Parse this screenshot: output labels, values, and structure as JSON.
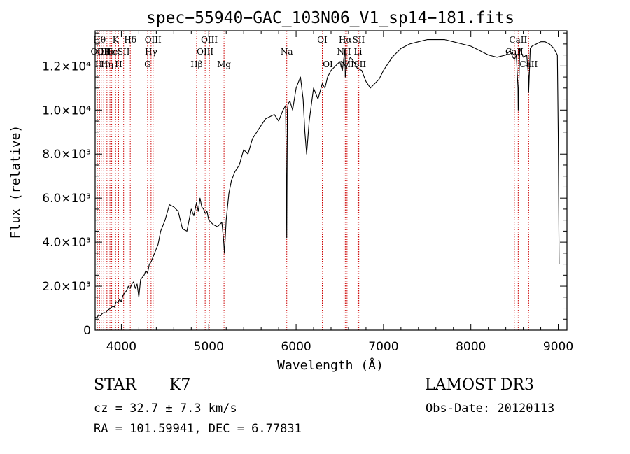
{
  "chart_data": {
    "type": "line",
    "title": "spec−55940−GAC_103N06_V1_sp14−181.fits",
    "xlabel": "Wavelength (Å)",
    "ylabel": "Flux (relative)",
    "xlim": [
      3700,
      9100
    ],
    "ylim": [
      0,
      13600
    ],
    "x_ticks": [
      {
        "value": 4000,
        "label": "4000"
      },
      {
        "value": 5000,
        "label": "5000"
      },
      {
        "value": 6000,
        "label": "6000"
      },
      {
        "value": 7000,
        "label": "7000"
      },
      {
        "value": 8000,
        "label": "8000"
      },
      {
        "value": 9000,
        "label": "9000"
      }
    ],
    "y_ticks": [
      {
        "value": 0,
        "label": "0"
      },
      {
        "value": 2000,
        "label": "2.0×10³"
      },
      {
        "value": 4000,
        "label": "4.0×10³"
      },
      {
        "value": 6000,
        "label": "6.0×10³"
      },
      {
        "value": 8000,
        "label": "8.0×10³"
      },
      {
        "value": 10000,
        "label": "1.0×10⁴"
      },
      {
        "value": 12000,
        "label": "1.2×10⁴"
      }
    ],
    "series": [
      {
        "name": "spectrum",
        "x": [
          3700,
          3720,
          3740,
          3760,
          3780,
          3800,
          3820,
          3840,
          3860,
          3880,
          3900,
          3920,
          3940,
          3960,
          3980,
          4000,
          4020,
          4040,
          4060,
          4080,
          4100,
          4120,
          4140,
          4160,
          4180,
          4200,
          4220,
          4240,
          4260,
          4280,
          4300,
          4320,
          4340,
          4360,
          4380,
          4400,
          4420,
          4450,
          4480,
          4500,
          4550,
          4600,
          4650,
          4700,
          4750,
          4800,
          4830,
          4860,
          4880,
          4900,
          4920,
          4940,
          4960,
          4980,
          5000,
          5050,
          5100,
          5150,
          5170,
          5180,
          5200,
          5230,
          5260,
          5300,
          5350,
          5400,
          5450,
          5500,
          5550,
          5600,
          5650,
          5700,
          5750,
          5800,
          5850,
          5880,
          5890,
          5893,
          5896,
          5900,
          5910,
          5930,
          5960,
          6000,
          6050,
          6080,
          6100,
          6120,
          6150,
          6200,
          6250,
          6300,
          6330,
          6360,
          6400,
          6450,
          6500,
          6530,
          6560,
          6563,
          6580,
          6620,
          6660,
          6700,
          6750,
          6800,
          6850,
          6900,
          6950,
          7000,
          7100,
          7200,
          7300,
          7400,
          7500,
          7600,
          7700,
          7800,
          7900,
          8000,
          8100,
          8200,
          8300,
          8400,
          8450,
          8480,
          8500,
          8520,
          8540,
          8542,
          8560,
          8600,
          8640,
          8660,
          8662,
          8680,
          8700,
          8750,
          8800,
          8850,
          8900,
          8950,
          8990,
          9000,
          9010
        ],
        "values": [
          600,
          550,
          700,
          650,
          750,
          800,
          780,
          900,
          950,
          1000,
          1100,
          1050,
          1300,
          1250,
          1400,
          1300,
          1600,
          1700,
          1800,
          2000,
          1900,
          2100,
          2200,
          1900,
          2100,
          1500,
          2300,
          2400,
          2500,
          2700,
          2600,
          3000,
          3100,
          3300,
          3500,
          3700,
          3900,
          4500,
          4800,
          5000,
          5700,
          5600,
          5400,
          4600,
          4500,
          5500,
          5200,
          5800,
          5400,
          6000,
          5600,
          5500,
          5300,
          5400,
          5000,
          4800,
          4700,
          4900,
          4100,
          3500,
          5000,
          6200,
          6800,
          7200,
          7500,
          8200,
          8000,
          8700,
          9000,
          9300,
          9600,
          9700,
          9800,
          9500,
          10000,
          10200,
          6000,
          4200,
          7000,
          10000,
          10300,
          10400,
          10000,
          11000,
          11500,
          10500,
          9000,
          8000,
          9500,
          11000,
          10500,
          11200,
          11000,
          11500,
          11800,
          12000,
          12200,
          11800,
          12800,
          11500,
          12000,
          12400,
          12200,
          11900,
          11800,
          11300,
          11000,
          11200,
          11400,
          11800,
          12400,
          12800,
          13000,
          13100,
          13200,
          13200,
          13200,
          13100,
          13000,
          12900,
          12700,
          12500,
          12400,
          12500,
          12700,
          12400,
          12300,
          12500,
          11000,
          10000,
          12800,
          12400,
          12500,
          11500,
          10800,
          12800,
          12900,
          13000,
          13100,
          13100,
          13000,
          12800,
          12500,
          9000,
          3000
        ]
      }
    ],
    "lines": [
      {
        "x": 3725,
        "label": "OII",
        "row": 2
      },
      {
        "x": 3750,
        "label": "Hθ",
        "row": 1
      },
      {
        "x": 3770,
        "label": "Hη",
        "row": 3
      },
      {
        "x": 3798,
        "label": "OII",
        "row": 2
      },
      {
        "x": 3835,
        "label": "Hη",
        "row": 3
      },
      {
        "x": 3869,
        "label": "He",
        "row": 2
      },
      {
        "x": 3889,
        "label": "He",
        "row": 2
      },
      {
        "x": 3934,
        "label": "K",
        "row": 1
      },
      {
        "x": 3968,
        "label": "H",
        "row": 3
      },
      {
        "x": 4026,
        "label": "SII",
        "row": 2
      },
      {
        "x": 4102,
        "label": "Hδ",
        "row": 1
      },
      {
        "x": 4300,
        "label": "G",
        "row": 3
      },
      {
        "x": 4340,
        "label": "Hγ",
        "row": 2
      },
      {
        "x": 4363,
        "label": "OIII",
        "row": 1
      },
      {
        "x": 4861,
        "label": "Hβ",
        "row": 3
      },
      {
        "x": 4959,
        "label": "OIII",
        "row": 2
      },
      {
        "x": 5007,
        "label": "OIII",
        "row": 1
      },
      {
        "x": 5175,
        "label": "Mg",
        "row": 3
      },
      {
        "x": 5893,
        "label": "Na",
        "row": 2
      },
      {
        "x": 6300,
        "label": "OI",
        "row": 1
      },
      {
        "x": 6364,
        "label": "OI",
        "row": 3
      },
      {
        "x": 6548,
        "label": "NII",
        "row": 2
      },
      {
        "x": 6563,
        "label": "Hα",
        "row": 1
      },
      {
        "x": 6583,
        "label": "NII",
        "row": 3
      },
      {
        "x": 6708,
        "label": "Li",
        "row": 2
      },
      {
        "x": 6716,
        "label": "SII",
        "row": 1
      },
      {
        "x": 6731,
        "label": "SII",
        "row": 3
      },
      {
        "x": 8498,
        "label": "CaII",
        "row": 2
      },
      {
        "x": 8542,
        "label": "CaII",
        "row": 1
      },
      {
        "x": 8662,
        "label": "CaII",
        "row": 3
      }
    ],
    "colors": {
      "spectrum": "#000000",
      "lines": "#cc0000",
      "axes": "#000000"
    }
  },
  "info": {
    "object_type": "STAR",
    "subclass": "K7",
    "survey": "LAMOST DR3",
    "cz": "cz = 32.7 ± 7.3 km/s",
    "obs_date": "Obs-Date: 20120113",
    "radec": "RA = 101.59941, DEC =   6.77831"
  }
}
